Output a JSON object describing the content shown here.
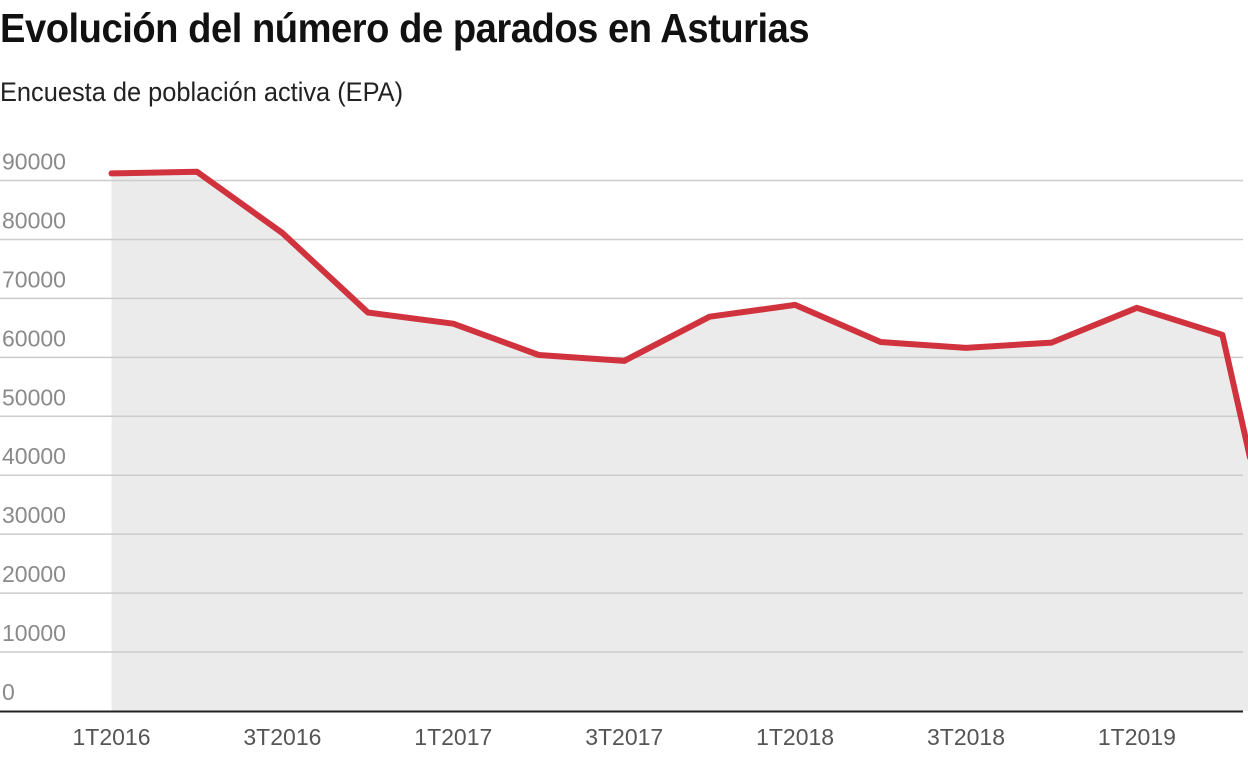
{
  "header": {
    "title": "Evolución del número de parados en Asturias",
    "subtitle": "Encuesta de población activa (EPA)"
  },
  "colors": {
    "line": "#d0333e",
    "area": "#ebebeb",
    "grid": "#cccccc",
    "axis": "#222222"
  },
  "chart_data": {
    "type": "area",
    "title": "Evolución del número de parados en Asturias",
    "subtitle": "Encuesta de población activa (EPA)",
    "xlabel": "",
    "ylabel": "",
    "ylim": [
      0,
      90000
    ],
    "grid": true,
    "legend": "none",
    "y_ticks": [
      "90000",
      "80000",
      "70000",
      "60000",
      "50000",
      "40000",
      "30000",
      "20000",
      "10000",
      "0"
    ],
    "x_tick_labels": [
      "1T2016",
      "3T2016",
      "1T2017",
      "3T2017",
      "1T2018",
      "3T2018",
      "1T2019"
    ],
    "categories": [
      "1T2016",
      "2T2016",
      "3T2016",
      "4T2016",
      "1T2017",
      "2T2017",
      "3T2017",
      "4T2017",
      "1T2018",
      "2T2018",
      "3T2018",
      "4T2018",
      "1T2019",
      "2T2019",
      "3T2019"
    ],
    "series": [
      {
        "name": "Parados",
        "values": [
          91200,
          91500,
          81100,
          67600,
          65700,
          60400,
          59400,
          66900,
          68900,
          62600,
          61600,
          62500,
          68400,
          63800,
          43000
        ]
      }
    ],
    "annotations": [
      "Last point (3T2019) partially clipped at right edge"
    ]
  }
}
